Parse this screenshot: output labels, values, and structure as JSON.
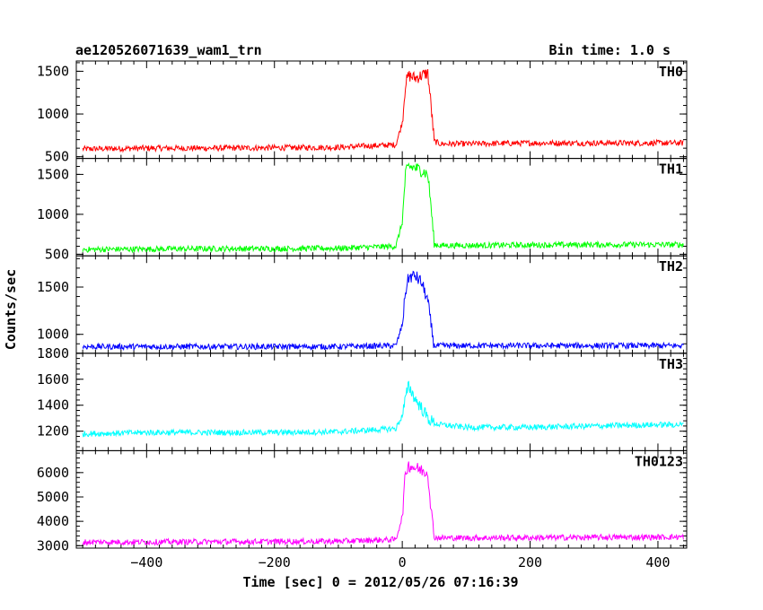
{
  "chart_data": {
    "type": "line",
    "title": "ae120526071639_wam1_trn",
    "bin_label": "Bin time: 1.0 s",
    "xlabel": "Time [sec] 0 = 2012/05/26 07:16:39",
    "ylabel": "Counts/sec",
    "xlim": [
      -510,
      445
    ],
    "x_ticks": [
      "−400",
      "−200",
      "0",
      "200",
      "400"
    ],
    "x_tick_values": [
      -400,
      -200,
      0,
      200,
      400
    ],
    "grid": false,
    "panels": [
      {
        "name": "TH0",
        "color": "#ff0000",
        "ylim": [
          480,
          1620
        ],
        "yticks": [
          500,
          1000,
          1500
        ],
        "ytick_labels": [
          "500",
          "1000",
          "1500"
        ],
        "x": [
          -500,
          -400,
          -300,
          -200,
          -100,
          -10,
          0,
          5,
          10,
          20,
          30,
          40,
          45,
          50,
          60,
          100,
          200,
          300,
          400,
          440
        ],
        "values": [
          590,
          600,
          600,
          605,
          610,
          640,
          900,
          1350,
          1450,
          1420,
          1450,
          1480,
          1100,
          680,
          650,
          650,
          660,
          660,
          660,
          660
        ]
      },
      {
        "name": "TH1",
        "color": "#00ff00",
        "ylim": [
          480,
          1700
        ],
        "yticks": [
          500,
          1000,
          1500
        ],
        "ytick_labels": [
          "500",
          "1000",
          "1500"
        ],
        "x": [
          -500,
          -400,
          -300,
          -200,
          -100,
          -10,
          0,
          5,
          10,
          20,
          30,
          40,
          45,
          50,
          60,
          100,
          200,
          300,
          400,
          440
        ],
        "values": [
          560,
          565,
          570,
          570,
          575,
          600,
          900,
          1500,
          1600,
          1580,
          1550,
          1500,
          1100,
          620,
          610,
          610,
          615,
          620,
          620,
          620
        ]
      },
      {
        "name": "TH2",
        "color": "#0000ff",
        "ylim": [
          800,
          1830
        ],
        "yticks": [
          1000,
          1500
        ],
        "ytick_labels": [
          "1000",
          "1500"
        ],
        "x": [
          -500,
          -400,
          -300,
          -200,
          -100,
          -10,
          0,
          5,
          10,
          20,
          30,
          40,
          45,
          50,
          60,
          100,
          200,
          300,
          400,
          440
        ],
        "values": [
          870,
          870,
          870,
          870,
          870,
          880,
          1100,
          1450,
          1600,
          1620,
          1550,
          1350,
          1100,
          880,
          880,
          880,
          880,
          880,
          880,
          880
        ]
      },
      {
        "name": "TH3",
        "color": "#00ffff",
        "ylim": [
          1050,
          1800
        ],
        "yticks": [
          1200,
          1400,
          1600,
          1800
        ],
        "ytick_labels": [
          "1200",
          "1400",
          "1600",
          "1800"
        ],
        "x": [
          -500,
          -400,
          -300,
          -200,
          -100,
          -10,
          0,
          5,
          10,
          20,
          30,
          40,
          45,
          50,
          60,
          100,
          200,
          300,
          400,
          440
        ],
        "values": [
          1180,
          1190,
          1190,
          1190,
          1195,
          1220,
          1320,
          1450,
          1550,
          1450,
          1380,
          1300,
          1280,
          1260,
          1250,
          1230,
          1230,
          1240,
          1250,
          1250
        ]
      },
      {
        "name": "TH0123",
        "color": "#ff00ff",
        "ylim": [
          2900,
          6900
        ],
        "yticks": [
          3000,
          4000,
          5000,
          6000
        ],
        "ytick_labels": [
          "3000",
          "4000",
          "5000",
          "6000"
        ],
        "x": [
          -500,
          -400,
          -300,
          -200,
          -100,
          -10,
          0,
          5,
          10,
          20,
          30,
          40,
          45,
          50,
          60,
          100,
          200,
          300,
          400,
          440
        ],
        "values": [
          3150,
          3150,
          3160,
          3170,
          3180,
          3250,
          4200,
          6000,
          6300,
          6200,
          6100,
          6000,
          4500,
          3350,
          3320,
          3320,
          3330,
          3340,
          3350,
          3360
        ]
      }
    ]
  }
}
